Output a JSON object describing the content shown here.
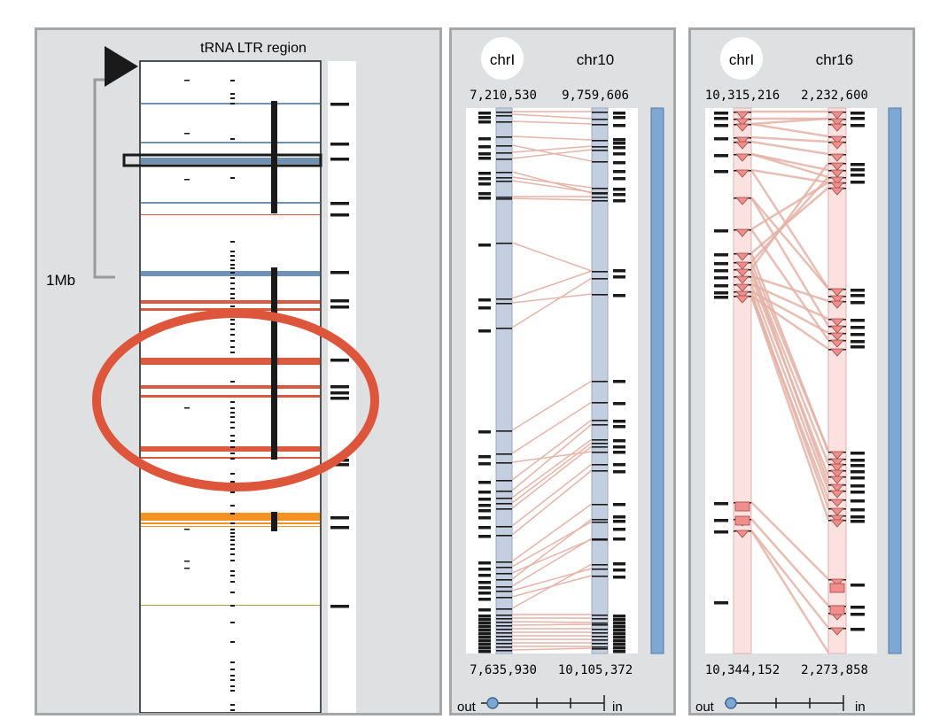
{
  "left_view": {
    "header": "tRNA LTR region",
    "scale_label": "1Mb",
    "colors": {
      "blue": "#6f91b3",
      "red": "#d95a3e",
      "orange": "#f39223",
      "olive": "#a6a34a",
      "selection": "#1a1a1a"
    }
  },
  "middle_view": {
    "chr_a": "chrI",
    "chr_b": "chr10",
    "top_a": "7,210,530",
    "top_b": "9,759,606",
    "bottom_a": "7,635,930",
    "bottom_b": "10,105,372",
    "zoom_out": "out",
    "zoom_in": "in",
    "colors": {
      "track": "#c3cfe0",
      "link": "#e6b4a8",
      "bar": "#7fa7d4"
    }
  },
  "right_view": {
    "chr_a": "chrI",
    "chr_b": "chr16",
    "top_a": "10,315,216",
    "top_b": "2,232,600",
    "bottom_a": "10,344,152",
    "bottom_b": "2,273,858",
    "zoom_out": "out",
    "zoom_in": "in",
    "colors": {
      "track": "#fbe1df",
      "link": "#e4b2a6",
      "marker": "#ef8e8a",
      "bar": "#7fa7d4"
    }
  }
}
